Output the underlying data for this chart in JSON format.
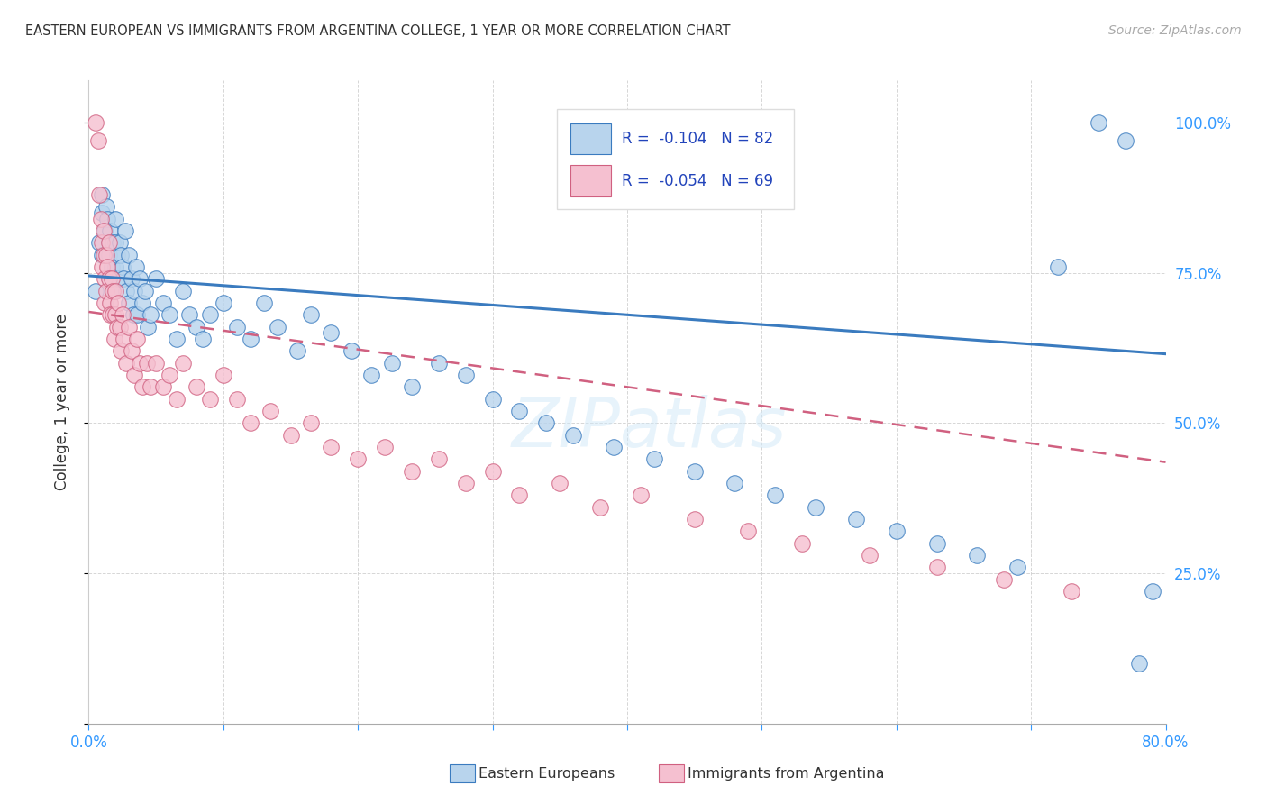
{
  "title": "EASTERN EUROPEAN VS IMMIGRANTS FROM ARGENTINA COLLEGE, 1 YEAR OR MORE CORRELATION CHART",
  "source": "Source: ZipAtlas.com",
  "ylabel": "College, 1 year or more",
  "xlim": [
    0.0,
    0.8
  ],
  "ylim": [
    0.0,
    1.07
  ],
  "legend_r1": "R =  -0.104",
  "legend_n1": "N = 82",
  "legend_r2": "R =  -0.054",
  "legend_n2": "N = 69",
  "color_blue": "#b8d4ed",
  "color_pink": "#f5c0d0",
  "line_color_blue": "#3a7bbf",
  "line_color_pink": "#d06080",
  "legend_text_color": "#2244bb",
  "axis_color": "#3399ff",
  "blue_line_y0": 0.745,
  "blue_line_y1": 0.615,
  "pink_line_x0": 0.0,
  "pink_line_x1": 0.8,
  "pink_line_y0": 0.685,
  "pink_line_y1": 0.435,
  "watermark_text": "ZIPatlas",
  "blue_x": [
    0.005,
    0.008,
    0.01,
    0.01,
    0.01,
    0.012,
    0.012,
    0.013,
    0.014,
    0.015,
    0.015,
    0.015,
    0.016,
    0.017,
    0.018,
    0.019,
    0.02,
    0.02,
    0.02,
    0.021,
    0.022,
    0.023,
    0.024,
    0.025,
    0.026,
    0.027,
    0.028,
    0.03,
    0.03,
    0.032,
    0.033,
    0.034,
    0.035,
    0.036,
    0.038,
    0.04,
    0.042,
    0.044,
    0.046,
    0.05,
    0.055,
    0.06,
    0.065,
    0.07,
    0.075,
    0.08,
    0.085,
    0.09,
    0.1,
    0.11,
    0.12,
    0.13,
    0.14,
    0.155,
    0.165,
    0.18,
    0.195,
    0.21,
    0.225,
    0.24,
    0.26,
    0.28,
    0.3,
    0.32,
    0.34,
    0.36,
    0.39,
    0.42,
    0.45,
    0.48,
    0.51,
    0.54,
    0.57,
    0.6,
    0.63,
    0.66,
    0.69,
    0.72,
    0.75,
    0.77,
    0.78,
    0.79
  ],
  "blue_y": [
    0.72,
    0.8,
    0.78,
    0.85,
    0.88,
    0.82,
    0.78,
    0.86,
    0.84,
    0.8,
    0.78,
    0.74,
    0.82,
    0.76,
    0.8,
    0.72,
    0.84,
    0.8,
    0.76,
    0.78,
    0.74,
    0.8,
    0.78,
    0.76,
    0.74,
    0.82,
    0.72,
    0.7,
    0.78,
    0.74,
    0.68,
    0.72,
    0.76,
    0.68,
    0.74,
    0.7,
    0.72,
    0.66,
    0.68,
    0.74,
    0.7,
    0.68,
    0.64,
    0.72,
    0.68,
    0.66,
    0.64,
    0.68,
    0.7,
    0.66,
    0.64,
    0.7,
    0.66,
    0.62,
    0.68,
    0.65,
    0.62,
    0.58,
    0.6,
    0.56,
    0.6,
    0.58,
    0.54,
    0.52,
    0.5,
    0.48,
    0.46,
    0.44,
    0.42,
    0.4,
    0.38,
    0.36,
    0.34,
    0.32,
    0.3,
    0.28,
    0.26,
    0.76,
    1.0,
    0.97,
    0.1,
    0.22
  ],
  "pink_x": [
    0.005,
    0.007,
    0.008,
    0.009,
    0.01,
    0.01,
    0.011,
    0.011,
    0.012,
    0.012,
    0.013,
    0.013,
    0.014,
    0.015,
    0.015,
    0.016,
    0.016,
    0.017,
    0.018,
    0.018,
    0.019,
    0.02,
    0.02,
    0.021,
    0.022,
    0.023,
    0.024,
    0.025,
    0.026,
    0.028,
    0.03,
    0.032,
    0.034,
    0.036,
    0.038,
    0.04,
    0.043,
    0.046,
    0.05,
    0.055,
    0.06,
    0.065,
    0.07,
    0.08,
    0.09,
    0.1,
    0.11,
    0.12,
    0.135,
    0.15,
    0.165,
    0.18,
    0.2,
    0.22,
    0.24,
    0.26,
    0.28,
    0.3,
    0.32,
    0.35,
    0.38,
    0.41,
    0.45,
    0.49,
    0.53,
    0.58,
    0.63,
    0.68,
    0.73
  ],
  "pink_y": [
    1.0,
    0.97,
    0.88,
    0.84,
    0.8,
    0.76,
    0.82,
    0.78,
    0.74,
    0.7,
    0.78,
    0.72,
    0.76,
    0.8,
    0.74,
    0.7,
    0.68,
    0.74,
    0.72,
    0.68,
    0.64,
    0.72,
    0.68,
    0.66,
    0.7,
    0.66,
    0.62,
    0.68,
    0.64,
    0.6,
    0.66,
    0.62,
    0.58,
    0.64,
    0.6,
    0.56,
    0.6,
    0.56,
    0.6,
    0.56,
    0.58,
    0.54,
    0.6,
    0.56,
    0.54,
    0.58,
    0.54,
    0.5,
    0.52,
    0.48,
    0.5,
    0.46,
    0.44,
    0.46,
    0.42,
    0.44,
    0.4,
    0.42,
    0.38,
    0.4,
    0.36,
    0.38,
    0.34,
    0.32,
    0.3,
    0.28,
    0.26,
    0.24,
    0.22
  ]
}
